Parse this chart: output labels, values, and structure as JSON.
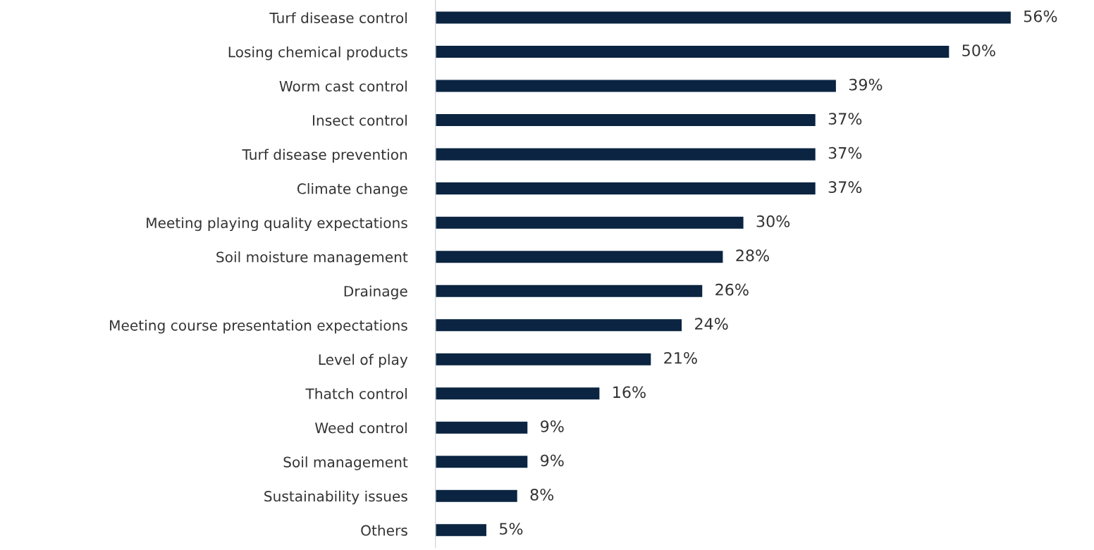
{
  "chart_data": {
    "type": "bar",
    "orientation": "horizontal",
    "categories": [
      "Turf disease control",
      "Losing chemical products",
      "Worm cast control",
      "Insect control",
      "Turf disease prevention",
      "Climate change",
      "Meeting playing quality expectations",
      "Soil moisture management",
      "Drainage",
      "Meeting course presentation expectations",
      "Level of play",
      "Thatch control",
      "Weed control",
      "Soil management",
      "Sustainability issues",
      "Others"
    ],
    "values": [
      56,
      50,
      39,
      37,
      37,
      37,
      30,
      28,
      26,
      24,
      21,
      16,
      9,
      9,
      8,
      5
    ],
    "value_labels": [
      "56%",
      "50%",
      "39%",
      "37%",
      "37%",
      "37%",
      "30%",
      "28%",
      "26%",
      "24%",
      "21%",
      "16%",
      "9%",
      "9%",
      "8%",
      "5%"
    ],
    "color": "#0a2441"
  }
}
